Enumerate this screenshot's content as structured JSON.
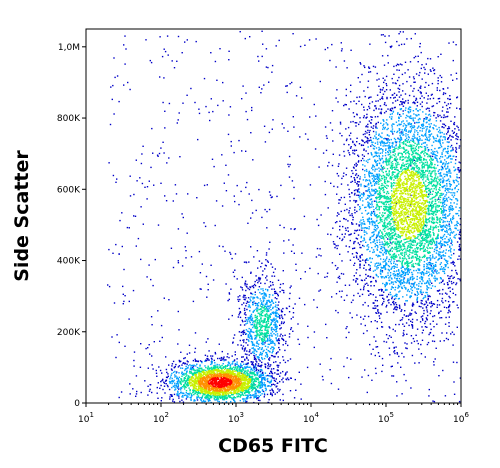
{
  "chart_data": {
    "type": "scatter",
    "title": "",
    "xlabel": "CD65 FITC",
    "ylabel": "Side Scatter",
    "x_scale": "log",
    "xlim": [
      10,
      1000000
    ],
    "ylim": [
      0,
      1050000
    ],
    "x_ticks": [
      {
        "value": 10,
        "base": "10",
        "exp": "1"
      },
      {
        "value": 100,
        "base": "10",
        "exp": "2"
      },
      {
        "value": 1000,
        "base": "10",
        "exp": "3"
      },
      {
        "value": 10000,
        "base": "10",
        "exp": "4"
      },
      {
        "value": 100000,
        "base": "10",
        "exp": "5"
      },
      {
        "value": 1000000,
        "base": "10",
        "exp": "6"
      }
    ],
    "y_ticks": [
      {
        "value": 0,
        "label": "0"
      },
      {
        "value": 200000,
        "label": "200K"
      },
      {
        "value": 400000,
        "label": "400K"
      },
      {
        "value": 600000,
        "label": "600K"
      },
      {
        "value": 800000,
        "label": "800K"
      },
      {
        "value": 1000000,
        "label": "1,0M"
      }
    ],
    "grid": false,
    "colormap": [
      "#0000c8",
      "#00a0ff",
      "#00e0a0",
      "#c8f000",
      "#ff9000",
      "#ff0000"
    ],
    "populations": [
      {
        "center_x": 600,
        "center_y": 60000,
        "weight": 0.3
      },
      {
        "center_x": 2200,
        "center_y": 225000,
        "weight": 0.12
      },
      {
        "center_x": 200000,
        "center_y": 560000,
        "weight": 0.58
      }
    ]
  }
}
